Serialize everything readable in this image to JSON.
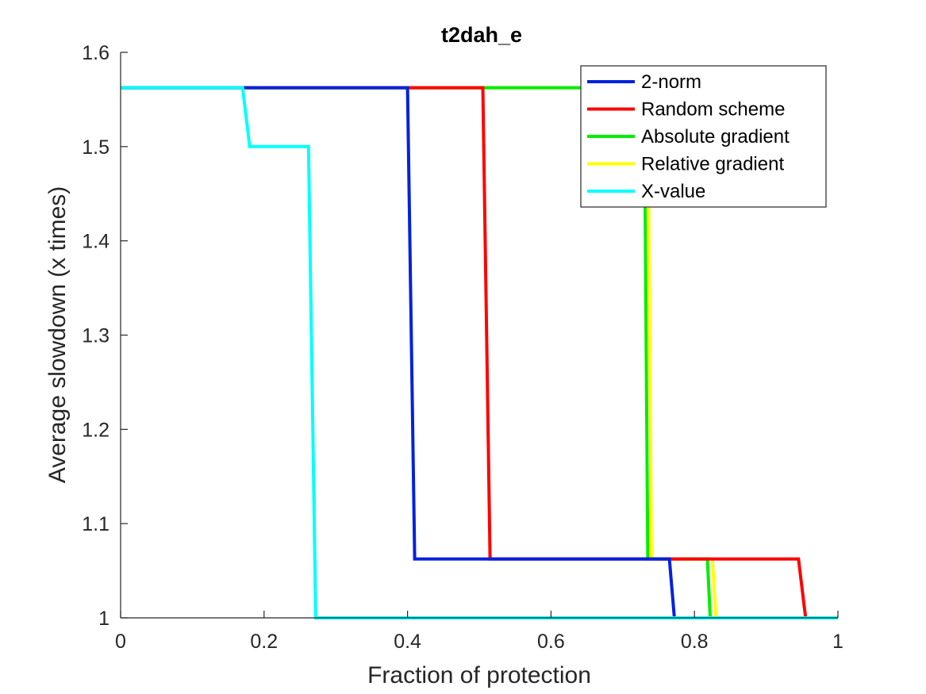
{
  "chart_data": {
    "type": "line",
    "title": "t2dah_e",
    "xlabel": "Fraction of protection",
    "ylabel": "Average slowdown (x times)",
    "xlim": [
      0,
      1
    ],
    "ylim": [
      1,
      1.6
    ],
    "xticks": [
      0,
      0.2,
      0.4,
      0.6,
      0.8,
      1
    ],
    "xtick_labels": [
      "0",
      "0.2",
      "0.4",
      "0.6",
      "0.8",
      "1"
    ],
    "yticks": [
      1,
      1.1,
      1.2,
      1.3,
      1.4,
      1.5,
      1.6
    ],
    "ytick_labels": [
      "1",
      "1.1",
      "1.2",
      "1.3",
      "1.4",
      "1.5",
      "1.6"
    ],
    "grid": false,
    "legend_position": "top-right",
    "series": [
      {
        "name": "Relative gradient",
        "color": "#ffff00",
        "x": [
          0,
          0.735,
          0.74,
          0.825,
          0.83,
          1
        ],
        "y": [
          1.5625,
          1.5625,
          1.0625,
          1.0625,
          1,
          1
        ]
      },
      {
        "name": "Absolute gradient",
        "color": "#00ee00",
        "x": [
          0,
          0.73,
          0.735,
          0.818,
          0.822,
          1
        ],
        "y": [
          1.5625,
          1.5625,
          1.0625,
          1.0625,
          1,
          1
        ]
      },
      {
        "name": "Random scheme",
        "color": "#ff0000",
        "x": [
          0,
          0.505,
          0.515,
          0.945,
          0.955,
          1
        ],
        "y": [
          1.5625,
          1.5625,
          1.0625,
          1.0625,
          1,
          1
        ]
      },
      {
        "name": "2-norm",
        "color": "#0022dd",
        "x": [
          0,
          0.4,
          0.41,
          0.765,
          0.772,
          1
        ],
        "y": [
          1.5625,
          1.5625,
          1.0625,
          1.0625,
          1,
          1
        ]
      },
      {
        "name": "X-value",
        "color": "#00ffff",
        "x": [
          0,
          0.17,
          0.18,
          0.262,
          0.272,
          1
        ],
        "y": [
          1.5625,
          1.5625,
          1.5,
          1.5,
          1,
          1
        ]
      }
    ],
    "legend_order": [
      "2-norm",
      "Random scheme",
      "Absolute gradient",
      "Relative gradient",
      "X-value"
    ]
  }
}
